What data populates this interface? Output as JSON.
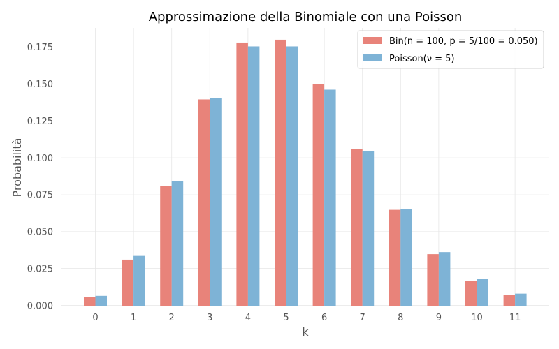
{
  "chart_data": {
    "type": "bar",
    "title": "Approssimazione della Binomiale con una Poisson",
    "xlabel": "k",
    "ylabel": "Probabilità",
    "categories": [
      "0",
      "1",
      "2",
      "3",
      "4",
      "5",
      "6",
      "7",
      "8",
      "9",
      "10",
      "11"
    ],
    "ylim": [
      0,
      0.188
    ],
    "yticks": [
      0.0,
      0.025,
      0.05,
      0.075,
      0.1,
      0.125,
      0.15,
      0.175
    ],
    "ytick_labels": [
      "0.000",
      "0.025",
      "0.050",
      "0.075",
      "0.100",
      "0.125",
      "0.150",
      "0.175"
    ],
    "grid": true,
    "legend_position": "top-right",
    "series": [
      {
        "name": "Bin(n = 100, p = 5/100 = 0.050)",
        "color": "#E8837A",
        "values": [
          0.0059,
          0.0312,
          0.0812,
          0.1396,
          0.1781,
          0.18,
          0.15,
          0.106,
          0.0649,
          0.0349,
          0.0167,
          0.0072
        ]
      },
      {
        "name": "Poisson(ν = 5)",
        "color": "#7EB3D6",
        "values": [
          0.0067,
          0.0337,
          0.0842,
          0.1404,
          0.1755,
          0.1755,
          0.1462,
          0.1044,
          0.0653,
          0.0363,
          0.0181,
          0.0082
        ]
      }
    ]
  }
}
